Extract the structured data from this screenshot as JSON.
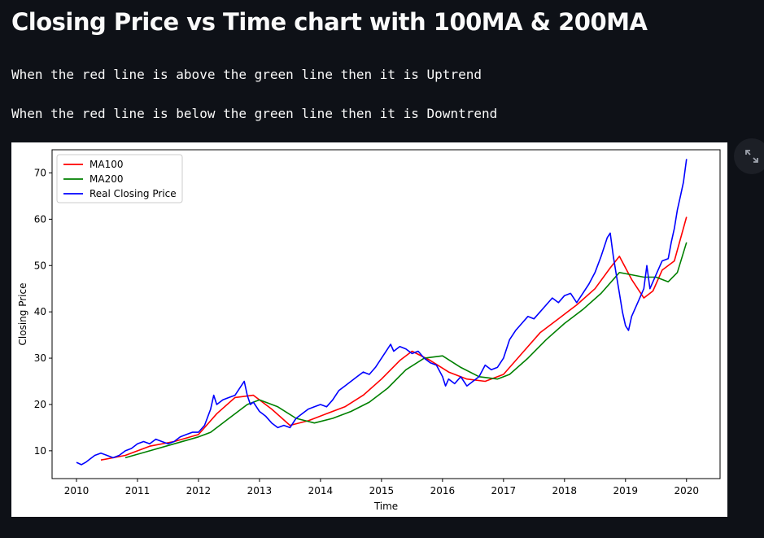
{
  "page": {
    "title": "Closing Price vs Time chart with 100MA & 200MA",
    "lines": [
      "When the red line is above the green line then it is Uptrend",
      "When the red line is below the green line then it is Downtrend"
    ]
  },
  "colors": {
    "background": "#0e1117",
    "ma100": "#ff0000",
    "ma200": "#008000",
    "price": "#0000ff"
  },
  "icons": {
    "expand": "fullscreen-expand-icon"
  },
  "chart_data": {
    "type": "line",
    "title": "",
    "xlabel": "Time",
    "ylabel": "Closing Price",
    "xlim": [
      2009.6,
      2020.55
    ],
    "ylim": [
      4,
      75
    ],
    "x_ticks": [
      2010,
      2011,
      2012,
      2013,
      2014,
      2015,
      2016,
      2017,
      2018,
      2019,
      2020
    ],
    "y_ticks": [
      10,
      20,
      30,
      40,
      50,
      60,
      70
    ],
    "grid": false,
    "legend": "top-left",
    "series": [
      {
        "name": "MA100",
        "color": "#ff0000",
        "x": [
          2010.4,
          2010.8,
          2011.2,
          2011.6,
          2012.0,
          2012.3,
          2012.6,
          2012.9,
          2013.2,
          2013.5,
          2013.8,
          2014.1,
          2014.4,
          2014.7,
          2015.0,
          2015.3,
          2015.5,
          2015.8,
          2016.1,
          2016.4,
          2016.7,
          2017.0,
          2017.3,
          2017.6,
          2017.9,
          2018.2,
          2018.5,
          2018.75,
          2018.9,
          2019.1,
          2019.3,
          2019.45,
          2019.6,
          2019.8,
          2020.0
        ],
        "y": [
          8,
          9,
          11,
          12,
          13.5,
          18,
          21.5,
          22,
          19,
          15.5,
          16.5,
          18,
          19.5,
          22,
          25.5,
          29.5,
          31.5,
          29.5,
          27,
          25.5,
          25,
          26.5,
          31,
          35.5,
          38.5,
          41.5,
          45,
          49.5,
          52,
          47,
          43,
          44.5,
          49,
          51,
          60.5
        ]
      },
      {
        "name": "MA200",
        "color": "#008000",
        "x": [
          2010.8,
          2011.2,
          2011.6,
          2012.0,
          2012.2,
          2012.5,
          2012.8,
          2013.0,
          2013.3,
          2013.6,
          2013.9,
          2014.2,
          2014.5,
          2014.8,
          2015.1,
          2015.4,
          2015.7,
          2016.0,
          2016.3,
          2016.6,
          2016.9,
          2017.1,
          2017.4,
          2017.7,
          2018.0,
          2018.3,
          2018.6,
          2018.9,
          2019.1,
          2019.3,
          2019.5,
          2019.7,
          2019.85,
          2020.0
        ],
        "y": [
          8.5,
          10,
          11.5,
          13,
          14,
          17,
          20,
          21,
          19.5,
          17,
          16,
          17,
          18.5,
          20.5,
          23.5,
          27.5,
          30,
          30.5,
          28,
          26,
          25.5,
          26.5,
          30,
          34,
          37.5,
          40.5,
          44,
          48.5,
          48,
          47.5,
          47.5,
          46.5,
          48.5,
          55
        ]
      },
      {
        "name": "Real Closing Price",
        "color": "#0000ff",
        "x": [
          2010.0,
          2010.08,
          2010.15,
          2010.25,
          2010.3,
          2010.4,
          2010.5,
          2010.6,
          2010.7,
          2010.8,
          2010.9,
          2011.0,
          2011.1,
          2011.2,
          2011.3,
          2011.4,
          2011.5,
          2011.6,
          2011.7,
          2011.8,
          2011.9,
          2012.0,
          2012.1,
          2012.2,
          2012.25,
          2012.3,
          2012.4,
          2012.5,
          2012.6,
          2012.7,
          2012.75,
          2012.8,
          2012.85,
          2012.9,
          2013.0,
          2013.1,
          2013.2,
          2013.3,
          2013.4,
          2013.5,
          2013.6,
          2013.7,
          2013.8,
          2013.9,
          2014.0,
          2014.1,
          2014.2,
          2014.3,
          2014.4,
          2014.5,
          2014.6,
          2014.7,
          2014.8,
          2014.9,
          2015.0,
          2015.1,
          2015.15,
          2015.2,
          2015.3,
          2015.4,
          2015.5,
          2015.6,
          2015.7,
          2015.8,
          2015.9,
          2016.0,
          2016.05,
          2016.1,
          2016.2,
          2016.3,
          2016.4,
          2016.5,
          2016.6,
          2016.7,
          2016.8,
          2016.9,
          2017.0,
          2017.1,
          2017.2,
          2017.3,
          2017.4,
          2017.5,
          2017.6,
          2017.7,
          2017.8,
          2017.9,
          2018.0,
          2018.1,
          2018.2,
          2018.3,
          2018.4,
          2018.5,
          2018.6,
          2018.7,
          2018.75,
          2018.8,
          2018.85,
          2018.9,
          2018.95,
          2019.0,
          2019.05,
          2019.1,
          2019.2,
          2019.3,
          2019.35,
          2019.4,
          2019.5,
          2019.6,
          2019.7,
          2019.75,
          2019.8,
          2019.85,
          2019.9,
          2019.95,
          2020.0
        ],
        "y": [
          7.5,
          7,
          7.5,
          8.5,
          9,
          9.5,
          9,
          8.5,
          9,
          10,
          10.5,
          11.5,
          12,
          11.5,
          12.5,
          12,
          11.5,
          12,
          13,
          13.5,
          14,
          14,
          15.5,
          19,
          22,
          20,
          21,
          21.5,
          22,
          24,
          25,
          22,
          20,
          20.5,
          18.5,
          17.5,
          16,
          15,
          15.5,
          15,
          17,
          18,
          19,
          19.5,
          20,
          19.5,
          21,
          23,
          24,
          25,
          26,
          27,
          26.5,
          28,
          30,
          32,
          33,
          31.5,
          32.5,
          32,
          31,
          31.5,
          30,
          29,
          28.5,
          26,
          24,
          25.5,
          24.5,
          26,
          24,
          25,
          26,
          28.5,
          27.5,
          28,
          30,
          34,
          36,
          37.5,
          39,
          38.5,
          40,
          41.5,
          43,
          42,
          43.5,
          44,
          42,
          44,
          46,
          48.5,
          52,
          56,
          57,
          52,
          48,
          44,
          40,
          37,
          36,
          39,
          42,
          45,
          50,
          45,
          48,
          51,
          51.5,
          55,
          58,
          62,
          65,
          68,
          73
        ]
      }
    ]
  }
}
